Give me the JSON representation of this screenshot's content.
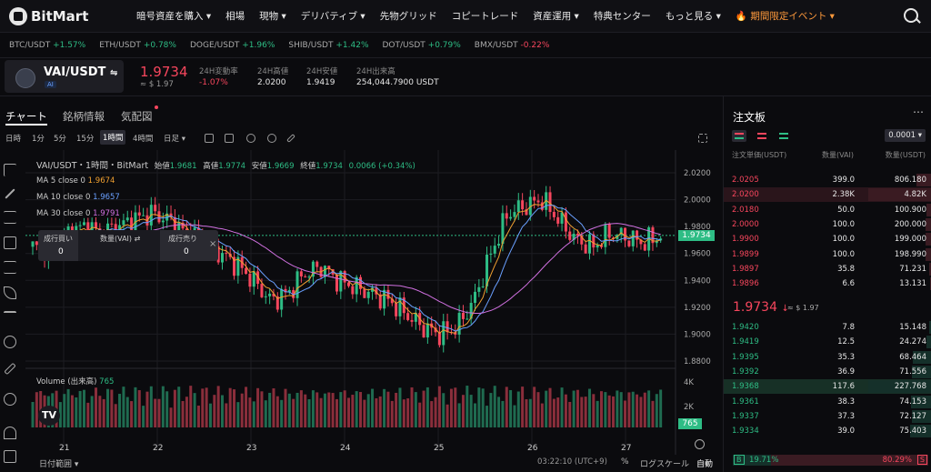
{
  "nav": {
    "logo": "BitMart",
    "items": [
      "暗号資産を購入 ▾",
      "相場",
      "現物 ▾",
      "デリバティブ ▾",
      "先物グリッド",
      "コピートレード",
      "資産運用 ▾",
      "特典センター",
      "もっと見る ▾",
      "🔥 期間限定イベント ▾"
    ]
  },
  "ticker": [
    {
      "s": "BTC/USDT",
      "c": "+1.57%",
      "d": "up"
    },
    {
      "s": "ETH/USDT",
      "c": "+0.78%",
      "d": "up"
    },
    {
      "s": "DOGE/USDT",
      "c": "+1.96%",
      "d": "up"
    },
    {
      "s": "SHIB/USDT",
      "c": "+1.42%",
      "d": "up"
    },
    {
      "s": "DOT/USDT",
      "c": "+0.79%",
      "d": "up"
    },
    {
      "s": "BMX/USDT",
      "c": "-0.22%",
      "d": "dn"
    }
  ],
  "header": {
    "pair": "VAI/USDT",
    "swap": "⇋",
    "badge": "AI",
    "price": "1.9734",
    "usd": "≈ $ 1.97",
    "stats": [
      {
        "l": "24H変動率",
        "v": "-1.07%"
      },
      {
        "l": "24H高値",
        "v": "2.0200"
      },
      {
        "l": "24H安値",
        "v": "1.9419"
      },
      {
        "l": "24H出来高",
        "v": "254,044.7900 USDT"
      }
    ]
  },
  "tabs": [
    "チャート",
    "銘柄情報",
    "気配図"
  ],
  "toolbar": {
    "items": [
      "日時",
      "1分",
      "5分",
      "15分",
      "1時間",
      "4時間",
      "日足 ▾"
    ],
    "active": "1時間"
  },
  "legend": {
    "title": "VAI/USDT・1時間・BitMart",
    "o_l": "始値",
    "o": "1.9681",
    "h_l": "高値",
    "h": "1.9774",
    "l_l": "安値",
    "l": "1.9669",
    "c_l": "終値",
    "c": "1.9734",
    "chg": "0.0066 (+0.34%)",
    "ma": [
      {
        "n": "MA 5 close 0",
        "v": "1.9674",
        "col": "#f0a030"
      },
      {
        "n": "MA 10 close 0",
        "v": "1.9657",
        "col": "#6aa0ff"
      },
      {
        "n": "MA 30 close 0",
        "v": "1.9791",
        "col": "#d070e0"
      }
    ],
    "vol_l": "Volume (出来高)",
    "vol": "765"
  },
  "tradepanel": {
    "buy": "成行買い",
    "buy_v": "0",
    "qty": "数量(VAI) ⇄",
    "sell": "成行売り",
    "sell_v": "0",
    "x": "×"
  },
  "yaxis": [
    "2.0200",
    "2.0000",
    "1.9800",
    "1.9600",
    "1.9400",
    "1.9200",
    "1.9000",
    "1.8800"
  ],
  "cur_price": "1.9734",
  "vol_axis": [
    "4K",
    "2K"
  ],
  "xaxis": [
    "21",
    "22",
    "23",
    "24",
    "25",
    "26",
    "27"
  ],
  "bottom": {
    "range": "日付範囲 ▾",
    "time": "03:22:10 (UTC+9)",
    "pct": "%",
    "log": "ログスケール",
    "auto": "自動"
  },
  "orderbook": {
    "title": "注文板",
    "precision": "0.0001 ▾",
    "cols": [
      "注文単価(USDT)",
      "数量(VAI)",
      "数量(USDT)"
    ],
    "asks": [
      {
        "p": "2.0205",
        "q": "399.0",
        "t": "806.180",
        "w": 0.25
      },
      {
        "p": "2.0200",
        "q": "2.38K",
        "t": "4.82K",
        "w": 1.0
      },
      {
        "p": "2.0180",
        "q": "50.0",
        "t": "100.900",
        "w": 0.08
      },
      {
        "p": "2.0000",
        "q": "100.0",
        "t": "200.000",
        "w": 0.1
      },
      {
        "p": "1.9900",
        "q": "100.0",
        "t": "199.000",
        "w": 0.1
      },
      {
        "p": "1.9899",
        "q": "100.0",
        "t": "198.990",
        "w": 0.1
      },
      {
        "p": "1.9897",
        "q": "35.8",
        "t": "71.231",
        "w": 0.05
      },
      {
        "p": "1.9896",
        "q": "6.6",
        "t": "13.131",
        "w": 0.03
      }
    ],
    "mid": "1.9734",
    "mid_arrow": "↓",
    "mid_usd": "≈ $ 1.97",
    "bids": [
      {
        "p": "1.9420",
        "q": "7.8",
        "t": "15.148",
        "w": 0.05
      },
      {
        "p": "1.9419",
        "q": "12.5",
        "t": "24.274",
        "w": 0.08
      },
      {
        "p": "1.9395",
        "q": "35.3",
        "t": "68.464",
        "w": 0.3
      },
      {
        "p": "1.9392",
        "q": "36.9",
        "t": "71.556",
        "w": 0.32
      },
      {
        "p": "1.9368",
        "q": "117.6",
        "t": "227.768",
        "w": 1.0
      },
      {
        "p": "1.9361",
        "q": "38.3",
        "t": "74.153",
        "w": 0.33
      },
      {
        "p": "1.9337",
        "q": "37.3",
        "t": "72.127",
        "w": 0.32
      },
      {
        "p": "1.9334",
        "q": "39.0",
        "t": "75.403",
        "w": 0.34
      }
    ],
    "buy_pct": "19.71%",
    "sell_pct": "80.29%",
    "b": "B",
    "s": "S"
  },
  "chart_data": {
    "type": "candlestick",
    "x": [
      "21",
      "22",
      "23",
      "24",
      "25",
      "26",
      "27"
    ],
    "ylim": [
      1.88,
      2.02
    ],
    "last": 1.9734,
    "volume_last": 765
  }
}
